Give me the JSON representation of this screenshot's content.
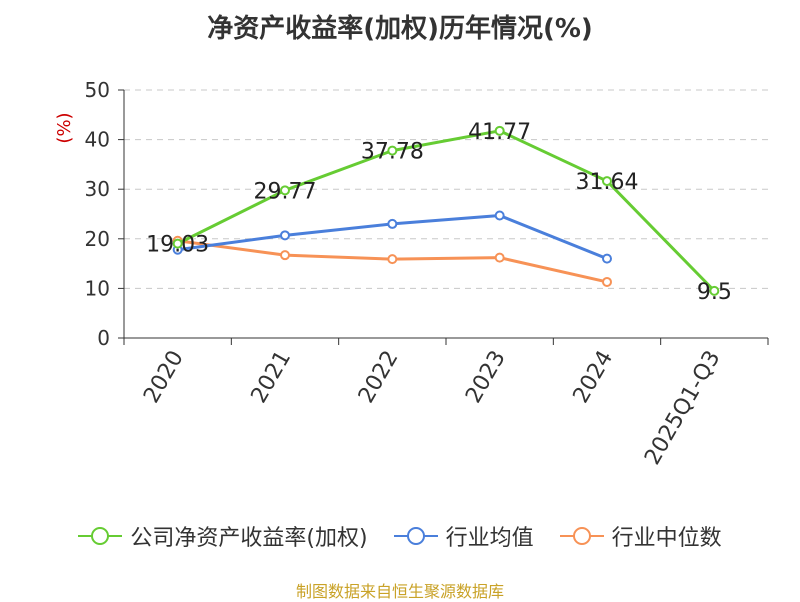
{
  "source_note": "制图数据来自恒生聚源数据库",
  "colors": {
    "company": "#66cc33",
    "industry_avg": "#4a7fdb",
    "industry_median": "#f79256",
    "grid": "#c8c8c8",
    "axis": "#333333",
    "unit": "#cc0000"
  },
  "chart_data": {
    "type": "line",
    "title": "净资产收益率(加权)历年情况(%)",
    "ylabel": "(%)",
    "xlabel": "",
    "categories": [
      "2020",
      "2021",
      "2022",
      "2023",
      "2024",
      "2025Q1-Q3"
    ],
    "ylim": [
      0,
      50
    ],
    "yticks": [
      0,
      10,
      20,
      30,
      40,
      50
    ],
    "grid": true,
    "legend_position": "bottom",
    "series": [
      {
        "name": "公司净资产收益率(加权)",
        "values": [
          19.03,
          29.77,
          37.78,
          41.77,
          31.64,
          9.5
        ],
        "data_labels": [
          "19.03",
          "29.77",
          "37.78",
          "41.77",
          "31.64",
          "9.5"
        ]
      },
      {
        "name": "行业均值",
        "values": [
          17.8,
          20.7,
          23.0,
          24.7,
          16.0,
          null
        ]
      },
      {
        "name": "行业中位数",
        "values": [
          19.6,
          16.7,
          15.9,
          16.2,
          11.3,
          null
        ]
      }
    ]
  }
}
